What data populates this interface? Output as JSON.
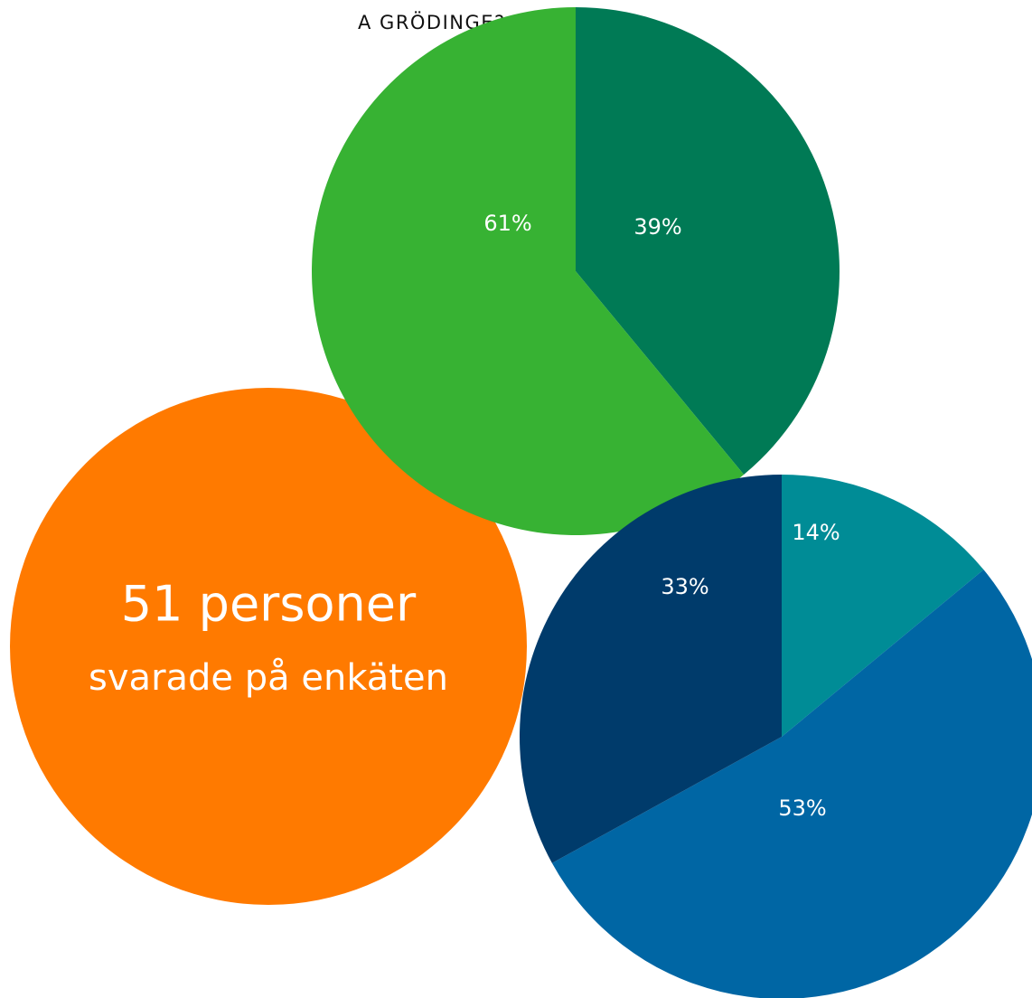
{
  "header": {
    "title": "A GRÖDINGE?"
  },
  "callout": {
    "headline": "51 personer",
    "subline": "svarade på enkäten",
    "color": "#ff7a00"
  },
  "chart_data": [
    {
      "type": "pie",
      "values": [
        39,
        61
      ],
      "value_labels": [
        "39%",
        "61%"
      ],
      "colors": [
        "#007a55",
        "#37b233"
      ]
    },
    {
      "type": "pie",
      "values": [
        14,
        53,
        33
      ],
      "value_labels": [
        "14%",
        "53%",
        "33%"
      ],
      "colors": [
        "#008c96",
        "#0066a4",
        "#003b6b"
      ]
    }
  ]
}
